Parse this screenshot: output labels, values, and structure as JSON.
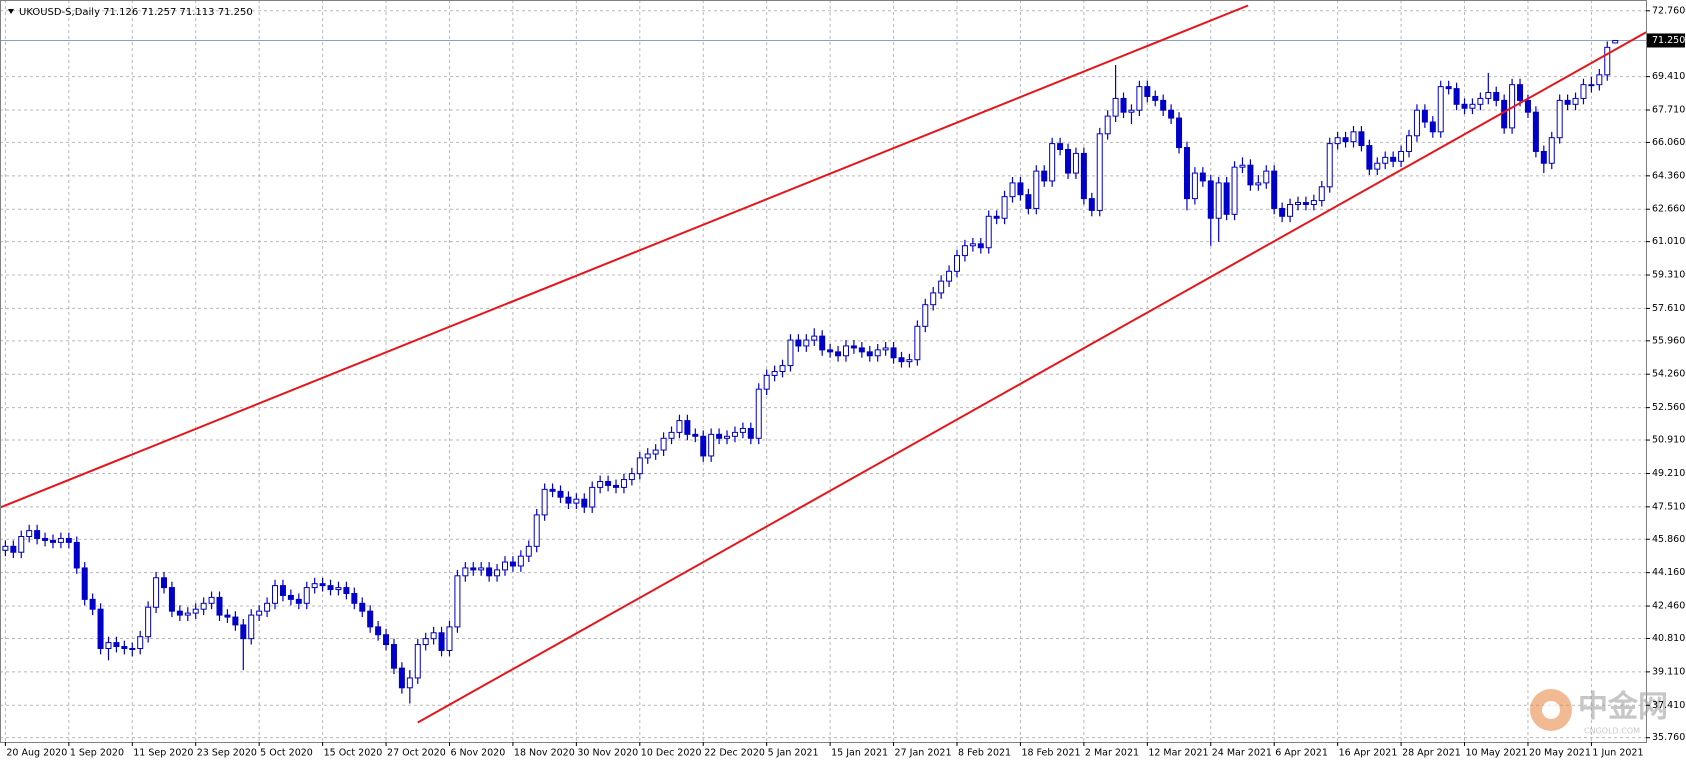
{
  "chart_data": {
    "type": "candlestick",
    "title": "UKOUSD-S,Daily  71.126 71.257 71.113 71.250",
    "categories": [
      "20 Aug 2020",
      null,
      null,
      null,
      null,
      null,
      null,
      null,
      "1 Sep 2020",
      null,
      null,
      null,
      null,
      null,
      null,
      null,
      "11 Sep 2020",
      null,
      null,
      null,
      null,
      null,
      null,
      null,
      "23 Sep 2020",
      null,
      null,
      null,
      null,
      null,
      null,
      null,
      "5 Oct 2020",
      null,
      null,
      null,
      null,
      null,
      null,
      null,
      "15 Oct 2020",
      null,
      null,
      null,
      null,
      null,
      null,
      null,
      "27 Oct 2020",
      null,
      null,
      null,
      null,
      null,
      null,
      null,
      "6 Nov 2020",
      null,
      null,
      null,
      null,
      null,
      null,
      null,
      "18 Nov 2020",
      null,
      null,
      null,
      null,
      null,
      null,
      null,
      "30 Nov 2020",
      null,
      null,
      null,
      null,
      null,
      null,
      null,
      "10 Dec 2020",
      null,
      null,
      null,
      null,
      null,
      null,
      null,
      "22 Dec 2020",
      null,
      null,
      null,
      null,
      null,
      null,
      null,
      "5 Jan 2021",
      null,
      null,
      null,
      null,
      null,
      null,
      null,
      "15 Jan 2021",
      null,
      null,
      null,
      null,
      null,
      null,
      null,
      "27 Jan 2021",
      null,
      null,
      null,
      null,
      null,
      null,
      null,
      "8 Feb 2021",
      null,
      null,
      null,
      null,
      null,
      null,
      null,
      "18 Feb 2021",
      null,
      null,
      null,
      null,
      null,
      null,
      null,
      "2 Mar 2021",
      null,
      null,
      null,
      null,
      null,
      null,
      null,
      "12 Mar 2021",
      null,
      null,
      null,
      null,
      null,
      null,
      null,
      "24 Mar 2021",
      null,
      null,
      null,
      null,
      null,
      null,
      null,
      "6 Apr 2021",
      null,
      null,
      null,
      null,
      null,
      null,
      null,
      "16 Apr 2021",
      null,
      null,
      null,
      null,
      null,
      null,
      null,
      "28 Apr 2021",
      null,
      null,
      null,
      null,
      null,
      null,
      null,
      "10 May 2021",
      null,
      null,
      null,
      null,
      null,
      null,
      null,
      "20 May 2021",
      null,
      null,
      null,
      null,
      null,
      null,
      null,
      "1 Jun 2021",
      null,
      null,
      null
    ],
    "candles": [
      [
        45.3,
        45.8,
        45.0,
        45.5
      ],
      [
        45.5,
        45.8,
        44.9,
        45.2
      ],
      [
        45.2,
        46.3,
        44.9,
        46.0
      ],
      [
        46.0,
        46.6,
        45.7,
        46.3
      ],
      [
        46.3,
        46.6,
        45.6,
        45.9
      ],
      [
        45.9,
        46.2,
        45.5,
        45.8
      ],
      [
        45.8,
        46.1,
        45.4,
        45.7
      ],
      [
        45.7,
        46.2,
        45.4,
        45.9
      ],
      [
        45.9,
        46.2,
        45.4,
        45.7
      ],
      [
        45.7,
        46.0,
        44.1,
        44.4
      ],
      [
        44.4,
        44.7,
        42.5,
        42.8
      ],
      [
        42.8,
        43.1,
        42.0,
        42.3
      ],
      [
        42.3,
        42.6,
        40.0,
        40.3
      ],
      [
        40.3,
        40.9,
        39.7,
        40.6
      ],
      [
        40.6,
        40.9,
        40.1,
        40.4
      ],
      [
        40.4,
        40.7,
        40.0,
        40.3
      ],
      [
        40.3,
        40.6,
        39.9,
        40.3
      ],
      [
        40.3,
        41.2,
        40.0,
        40.9
      ],
      [
        40.9,
        42.7,
        40.6,
        42.4
      ],
      [
        42.4,
        44.2,
        42.1,
        43.9
      ],
      [
        43.9,
        44.2,
        43.1,
        43.4
      ],
      [
        43.4,
        43.7,
        41.9,
        42.2
      ],
      [
        42.2,
        42.5,
        41.7,
        42.0
      ],
      [
        42.0,
        42.4,
        41.7,
        42.1
      ],
      [
        42.1,
        42.6,
        41.8,
        42.3
      ],
      [
        42.3,
        42.9,
        42.0,
        42.6
      ],
      [
        42.6,
        43.2,
        42.3,
        42.9
      ],
      [
        42.9,
        43.2,
        41.7,
        42.0
      ],
      [
        42.0,
        42.3,
        41.6,
        41.9
      ],
      [
        41.9,
        42.2,
        41.2,
        41.5
      ],
      [
        41.5,
        41.8,
        39.2,
        40.8
      ],
      [
        40.8,
        42.3,
        40.5,
        42.0
      ],
      [
        42.0,
        42.5,
        41.7,
        42.2
      ],
      [
        42.2,
        42.9,
        41.9,
        42.6
      ],
      [
        42.6,
        43.8,
        42.3,
        43.5
      ],
      [
        43.5,
        43.8,
        42.7,
        43.0
      ],
      [
        43.0,
        43.3,
        42.5,
        42.8
      ],
      [
        42.8,
        43.1,
        42.3,
        42.6
      ],
      [
        42.6,
        43.7,
        42.3,
        43.4
      ],
      [
        43.4,
        43.9,
        43.1,
        43.6
      ],
      [
        43.6,
        43.9,
        43.2,
        43.5
      ],
      [
        43.5,
        43.8,
        43.0,
        43.3
      ],
      [
        43.3,
        43.7,
        43.0,
        43.4
      ],
      [
        43.4,
        43.7,
        42.8,
        43.1
      ],
      [
        43.1,
        43.4,
        42.3,
        42.6
      ],
      [
        42.6,
        42.9,
        41.9,
        42.2
      ],
      [
        42.2,
        42.5,
        41.1,
        41.4
      ],
      [
        41.4,
        41.7,
        40.7,
        41.0
      ],
      [
        41.0,
        41.3,
        40.2,
        40.5
      ],
      [
        40.5,
        40.8,
        39.0,
        39.3
      ],
      [
        39.3,
        39.6,
        38.0,
        38.3
      ],
      [
        38.3,
        39.2,
        37.5,
        38.8
      ],
      [
        38.8,
        40.8,
        38.5,
        40.5
      ],
      [
        40.5,
        41.1,
        40.2,
        40.8
      ],
      [
        40.8,
        41.4,
        40.5,
        41.1
      ],
      [
        41.1,
        41.4,
        39.9,
        40.2
      ],
      [
        40.2,
        41.7,
        39.9,
        41.4
      ],
      [
        41.4,
        44.3,
        41.1,
        44.0
      ],
      [
        44.0,
        44.7,
        43.7,
        44.4
      ],
      [
        44.4,
        44.7,
        44.0,
        44.3
      ],
      [
        44.3,
        44.7,
        44.0,
        44.4
      ],
      [
        44.4,
        44.7,
        43.7,
        44.0
      ],
      [
        44.0,
        44.6,
        43.7,
        44.3
      ],
      [
        44.3,
        45.0,
        44.0,
        44.7
      ],
      [
        44.7,
        45.0,
        44.2,
        44.5
      ],
      [
        44.5,
        45.3,
        44.2,
        45.0
      ],
      [
        45.0,
        45.8,
        44.7,
        45.5
      ],
      [
        45.5,
        47.4,
        45.2,
        47.1
      ],
      [
        47.1,
        48.7,
        46.8,
        48.4
      ],
      [
        48.4,
        48.7,
        48.0,
        48.3
      ],
      [
        48.3,
        48.6,
        47.7,
        48.0
      ],
      [
        48.0,
        48.3,
        47.4,
        47.7
      ],
      [
        47.7,
        48.2,
        47.4,
        47.9
      ],
      [
        47.9,
        48.2,
        47.2,
        47.5
      ],
      [
        47.5,
        48.8,
        47.2,
        48.5
      ],
      [
        48.5,
        49.1,
        48.2,
        48.8
      ],
      [
        48.8,
        49.1,
        48.3,
        48.6
      ],
      [
        48.6,
        48.9,
        48.2,
        48.5
      ],
      [
        48.5,
        49.2,
        48.2,
        48.9
      ],
      [
        48.9,
        49.5,
        48.6,
        49.2
      ],
      [
        49.2,
        50.3,
        48.9,
        50.0
      ],
      [
        50.0,
        50.5,
        49.7,
        50.2
      ],
      [
        50.2,
        50.7,
        49.9,
        50.4
      ],
      [
        50.4,
        51.3,
        50.1,
        51.0
      ],
      [
        51.0,
        51.6,
        50.7,
        51.3
      ],
      [
        51.3,
        52.2,
        51.0,
        51.9
      ],
      [
        51.9,
        52.2,
        50.9,
        51.2
      ],
      [
        51.2,
        51.5,
        50.8,
        51.1
      ],
      [
        51.1,
        51.4,
        49.8,
        50.1
      ],
      [
        50.1,
        51.5,
        49.8,
        51.2
      ],
      [
        51.2,
        51.5,
        50.7,
        51.0
      ],
      [
        51.0,
        51.4,
        50.7,
        51.1
      ],
      [
        51.1,
        51.6,
        50.8,
        51.3
      ],
      [
        51.3,
        51.8,
        51.0,
        51.5
      ],
      [
        51.5,
        51.8,
        50.7,
        51.0
      ],
      [
        51.0,
        53.8,
        50.7,
        53.5
      ],
      [
        53.5,
        54.5,
        53.2,
        54.2
      ],
      [
        54.2,
        54.7,
        53.9,
        54.4
      ],
      [
        54.4,
        55.0,
        54.1,
        54.7
      ],
      [
        54.7,
        56.3,
        54.4,
        56.0
      ],
      [
        56.0,
        56.3,
        55.4,
        55.7
      ],
      [
        55.7,
        56.3,
        55.4,
        56.0
      ],
      [
        56.0,
        56.6,
        55.7,
        56.2
      ],
      [
        56.2,
        56.5,
        55.2,
        55.5
      ],
      [
        55.5,
        55.8,
        55.1,
        55.4
      ],
      [
        55.4,
        55.7,
        54.9,
        55.2
      ],
      [
        55.2,
        56.0,
        54.9,
        55.7
      ],
      [
        55.7,
        56.0,
        55.3,
        55.6
      ],
      [
        55.6,
        55.9,
        55.1,
        55.4
      ],
      [
        55.4,
        55.7,
        54.9,
        55.2
      ],
      [
        55.2,
        55.8,
        54.9,
        55.5
      ],
      [
        55.5,
        55.9,
        55.2,
        55.6
      ],
      [
        55.6,
        55.9,
        54.8,
        55.1
      ],
      [
        55.1,
        55.4,
        54.6,
        54.9
      ],
      [
        54.9,
        55.3,
        54.6,
        55.0
      ],
      [
        55.0,
        57.0,
        54.7,
        56.7
      ],
      [
        56.7,
        58.1,
        56.4,
        57.8
      ],
      [
        57.8,
        58.7,
        57.5,
        58.4
      ],
      [
        58.4,
        59.3,
        58.1,
        59.0
      ],
      [
        59.0,
        59.8,
        58.7,
        59.5
      ],
      [
        59.5,
        60.6,
        59.2,
        60.3
      ],
      [
        60.3,
        61.1,
        60.0,
        60.8
      ],
      [
        60.8,
        61.2,
        60.5,
        60.9
      ],
      [
        60.9,
        61.2,
        60.4,
        60.7
      ],
      [
        60.7,
        62.6,
        60.4,
        62.3
      ],
      [
        62.3,
        62.6,
        61.9,
        62.2
      ],
      [
        62.2,
        63.6,
        61.9,
        63.3
      ],
      [
        63.3,
        64.3,
        63.0,
        64.0
      ],
      [
        64.0,
        64.3,
        63.1,
        63.4
      ],
      [
        63.4,
        63.7,
        62.4,
        62.7
      ],
      [
        62.7,
        64.9,
        62.4,
        64.6
      ],
      [
        64.6,
        64.9,
        63.8,
        64.1
      ],
      [
        64.1,
        66.3,
        63.8,
        66.0
      ],
      [
        66.0,
        66.3,
        65.4,
        65.7
      ],
      [
        65.7,
        66.0,
        64.2,
        64.5
      ],
      [
        64.5,
        65.8,
        64.2,
        65.5
      ],
      [
        65.5,
        65.8,
        62.9,
        63.2
      ],
      [
        63.2,
        63.5,
        62.3,
        62.6
      ],
      [
        62.6,
        66.8,
        62.3,
        66.5
      ],
      [
        66.5,
        67.7,
        66.2,
        67.4
      ],
      [
        67.4,
        70.0,
        67.1,
        68.3
      ],
      [
        68.3,
        68.6,
        67.3,
        67.6
      ],
      [
        67.6,
        68.0,
        67.0,
        67.7
      ],
      [
        67.7,
        69.2,
        67.4,
        68.9
      ],
      [
        68.9,
        69.2,
        68.1,
        68.4
      ],
      [
        68.4,
        68.7,
        67.9,
        68.2
      ],
      [
        68.2,
        68.5,
        67.4,
        67.7
      ],
      [
        67.7,
        68.0,
        67.0,
        67.3
      ],
      [
        67.3,
        67.6,
        65.5,
        65.8
      ],
      [
        65.8,
        66.1,
        62.6,
        63.2
      ],
      [
        63.2,
        64.8,
        62.9,
        64.5
      ],
      [
        64.5,
        64.8,
        63.8,
        64.1
      ],
      [
        64.1,
        64.4,
        60.8,
        62.2
      ],
      [
        62.2,
        64.3,
        61.0,
        64.0
      ],
      [
        64.0,
        64.3,
        62.1,
        62.4
      ],
      [
        62.4,
        65.1,
        62.1,
        64.8
      ],
      [
        64.8,
        65.3,
        64.5,
        64.9
      ],
      [
        64.9,
        65.2,
        63.6,
        63.9
      ],
      [
        63.9,
        64.4,
        63.6,
        64.0
      ],
      [
        64.0,
        64.9,
        63.7,
        64.6
      ],
      [
        64.6,
        64.9,
        62.4,
        62.7
      ],
      [
        62.7,
        63.0,
        62.0,
        62.3
      ],
      [
        62.3,
        63.2,
        62.0,
        62.9
      ],
      [
        62.9,
        63.3,
        62.6,
        63.0
      ],
      [
        63.0,
        63.3,
        62.6,
        62.9
      ],
      [
        62.9,
        63.4,
        62.6,
        63.1
      ],
      [
        63.1,
        64.1,
        62.8,
        63.8
      ],
      [
        63.8,
        66.3,
        63.5,
        66.0
      ],
      [
        66.0,
        66.6,
        65.7,
        66.3
      ],
      [
        66.3,
        66.6,
        65.8,
        66.1
      ],
      [
        66.1,
        66.9,
        65.8,
        66.6
      ],
      [
        66.6,
        66.9,
        65.6,
        65.9
      ],
      [
        65.9,
        66.2,
        64.4,
        64.7
      ],
      [
        64.7,
        65.3,
        64.4,
        65.0
      ],
      [
        65.0,
        65.6,
        64.7,
        65.3
      ],
      [
        65.3,
        65.6,
        64.8,
        65.1
      ],
      [
        65.1,
        65.9,
        64.8,
        65.6
      ],
      [
        65.6,
        66.7,
        65.3,
        66.4
      ],
      [
        66.4,
        68.0,
        66.1,
        67.7
      ],
      [
        67.7,
        68.0,
        66.8,
        67.1
      ],
      [
        67.1,
        67.4,
        66.3,
        66.6
      ],
      [
        66.6,
        69.2,
        66.3,
        68.9
      ],
      [
        68.9,
        69.2,
        68.5,
        68.8
      ],
      [
        68.8,
        69.1,
        67.7,
        68.0
      ],
      [
        68.0,
        68.3,
        67.5,
        67.8
      ],
      [
        67.8,
        68.3,
        67.5,
        68.0
      ],
      [
        68.0,
        68.6,
        67.7,
        68.3
      ],
      [
        68.3,
        69.6,
        68.0,
        68.6
      ],
      [
        68.6,
        68.9,
        67.9,
        68.2
      ],
      [
        68.2,
        68.5,
        66.5,
        66.8
      ],
      [
        66.8,
        69.3,
        66.5,
        69.0
      ],
      [
        69.0,
        69.3,
        67.9,
        68.2
      ],
      [
        68.2,
        68.5,
        67.3,
        67.6
      ],
      [
        67.6,
        67.9,
        65.3,
        65.6
      ],
      [
        65.6,
        65.9,
        64.5,
        65.0
      ],
      [
        65.0,
        66.6,
        64.7,
        66.3
      ],
      [
        66.3,
        68.5,
        66.0,
        68.2
      ],
      [
        68.2,
        68.5,
        67.7,
        68.0
      ],
      [
        68.0,
        68.6,
        67.7,
        68.3
      ],
      [
        68.3,
        69.3,
        68.0,
        69.0
      ],
      [
        69.0,
        69.4,
        68.6,
        69.0
      ],
      [
        69.0,
        69.8,
        68.7,
        69.5
      ],
      [
        69.5,
        71.2,
        69.2,
        70.9
      ],
      [
        71.126,
        71.257,
        71.113,
        71.25
      ]
    ],
    "color": "#0000c8",
    "ylim": [
      35.54,
      73.31
    ],
    "yticks": [
      {
        "value": 72.76,
        "label": "72.760"
      },
      {
        "value": 69.41,
        "label": "69.410"
      },
      {
        "value": 67.71,
        "label": "67.710"
      },
      {
        "value": 66.06,
        "label": "66.060"
      },
      {
        "value": 64.36,
        "label": "64.360"
      },
      {
        "value": 62.66,
        "label": "62.660"
      },
      {
        "value": 61.01,
        "label": "61.010"
      },
      {
        "value": 59.31,
        "label": "59.310"
      },
      {
        "value": 57.61,
        "label": "57.610"
      },
      {
        "value": 55.96,
        "label": "55.960"
      },
      {
        "value": 54.26,
        "label": "54.260"
      },
      {
        "value": 52.56,
        "label": "52.560"
      },
      {
        "value": 50.91,
        "label": "50.910"
      },
      {
        "value": 49.21,
        "label": "49.210"
      },
      {
        "value": 47.51,
        "label": "47.510"
      },
      {
        "value": 45.86,
        "label": "45.860"
      },
      {
        "value": 44.16,
        "label": "44.160"
      },
      {
        "value": 42.46,
        "label": "42.460"
      },
      {
        "value": 40.81,
        "label": "40.810"
      },
      {
        "value": 39.11,
        "label": "39.110"
      },
      {
        "value": 37.41,
        "label": "37.410"
      },
      {
        "value": 35.76,
        "label": "35.760"
      }
    ],
    "grid": true,
    "current_price": {
      "value": 71.25,
      "label": "71.250"
    },
    "trendline_color": "#e8141a",
    "trendlines": [
      {
        "x": [
          -0.68,
          156.7
        ],
        "y": [
          47.47,
          73.03
        ]
      },
      {
        "x": [
          52.0,
          206.9
        ],
        "y": [
          36.53,
          71.67
        ]
      }
    ]
  },
  "watermark": {
    "title": "中金网",
    "subtitle": "CNGOLD.COM"
  }
}
